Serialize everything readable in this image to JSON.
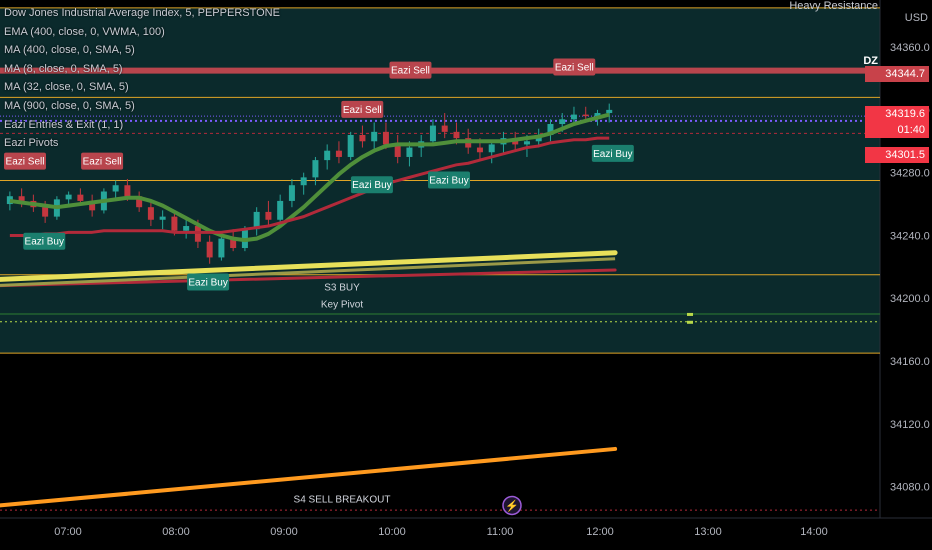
{
  "header": {
    "title": "Dow Jones Industrial Average Index, 5, PEPPERSTONE",
    "indicators": [
      "EMA (400, close, 0, VWMA, 100)",
      "MA (400, close, 0, SMA, 5)",
      "MA (8, close, 0, SMA, 5)",
      "MA (32, close, 0, SMA, 5)",
      "MA (900, close, 0, SMA, 5)",
      "Eazi Entries & Exit (1, 1)",
      "Eazi Pivots"
    ]
  },
  "annotations": {
    "heavy_resistance": "Heavy Resistance",
    "dz": "DZ",
    "s3_buy": "S3 BUY",
    "key_pivot": "Key Pivot",
    "s4_sell_breakout": "S4 SELL BREAKOUT",
    "currency": "USD"
  },
  "price_tags": {
    "red_tag": "34344.7",
    "last_price": "34319.6",
    "countdown": "01:40",
    "ma_tag": "34301.5"
  },
  "colors": {
    "background_teal": "#0b2a2c",
    "up_candle": "#26a69a",
    "down_candle": "#c4373f",
    "green_ma": "#4f8f3a",
    "red_ma": "#b22a3a",
    "yellow_ma": "#e8e05a",
    "orange_line": "#ff9a1f",
    "level_orange": "#e0a526",
    "dotted_blue": "#7c5cff",
    "buy_label": "#1b7f6e",
    "sell_label": "#b8454d"
  },
  "chart_data": {
    "type": "candlestick",
    "ylim": [
      34060,
      34390
    ],
    "y_ticks": [
      34360.0,
      34320.0,
      34280.0,
      34240.0,
      34200.0,
      34160.0,
      34120.0,
      34080.0
    ],
    "x_ticks": [
      "07:00",
      "08:00",
      "09:00",
      "10:00",
      "11:00",
      "12:00",
      "13:00",
      "14:00"
    ],
    "candles": [
      [
        34260,
        34268,
        34256,
        34265
      ],
      [
        34265,
        34270,
        34258,
        34262
      ],
      [
        34262,
        34266,
        34255,
        34258
      ],
      [
        34258,
        34262,
        34248,
        34252
      ],
      [
        34252,
        34265,
        34250,
        34263
      ],
      [
        34263,
        34268,
        34258,
        34266
      ],
      [
        34266,
        34270,
        34260,
        34262
      ],
      [
        34262,
        34266,
        34252,
        34256
      ],
      [
        34256,
        34270,
        34254,
        34268
      ],
      [
        34268,
        34275,
        34264,
        34272
      ],
      [
        34272,
        34276,
        34262,
        34265
      ],
      [
        34265,
        34268,
        34255,
        34258
      ],
      [
        34258,
        34262,
        34246,
        34250
      ],
      [
        34250,
        34256,
        34244,
        34252
      ],
      [
        34252,
        34255,
        34240,
        34243
      ],
      [
        34243,
        34250,
        34238,
        34246
      ],
      [
        34246,
        34250,
        34232,
        34236
      ],
      [
        34236,
        34240,
        34222,
        34226
      ],
      [
        34226,
        34240,
        34224,
        34238
      ],
      [
        34238,
        34244,
        34230,
        34232
      ],
      [
        34232,
        34246,
        34230,
        34244
      ],
      [
        34244,
        34258,
        34240,
        34255
      ],
      [
        34255,
        34262,
        34246,
        34250
      ],
      [
        34250,
        34266,
        34248,
        34262
      ],
      [
        34262,
        34276,
        34258,
        34272
      ],
      [
        34272,
        34280,
        34266,
        34277
      ],
      [
        34277,
        34290,
        34272,
        34288
      ],
      [
        34288,
        34298,
        34282,
        34294
      ],
      [
        34294,
        34300,
        34286,
        34290
      ],
      [
        34290,
        34306,
        34288,
        34304
      ],
      [
        34304,
        34310,
        34296,
        34300
      ],
      [
        34300,
        34312,
        34294,
        34306
      ],
      [
        34306,
        34312,
        34295,
        34298
      ],
      [
        34298,
        34304,
        34286,
        34290
      ],
      [
        34290,
        34300,
        34284,
        34296
      ],
      [
        34296,
        34304,
        34290,
        34300
      ],
      [
        34300,
        34314,
        34298,
        34310
      ],
      [
        34310,
        34318,
        34302,
        34306
      ],
      [
        34306,
        34312,
        34298,
        34302
      ],
      [
        34302,
        34308,
        34292,
        34296
      ],
      [
        34296,
        34302,
        34288,
        34293
      ],
      [
        34293,
        34300,
        34286,
        34298
      ],
      [
        34298,
        34306,
        34292,
        34302
      ],
      [
        34302,
        34306,
        34294,
        34298
      ],
      [
        34298,
        34304,
        34290,
        34300
      ],
      [
        34300,
        34308,
        34296,
        34304
      ],
      [
        34304,
        34314,
        34300,
        34311
      ],
      [
        34311,
        34318,
        34306,
        34314
      ],
      [
        34314,
        34322,
        34310,
        34317
      ],
      [
        34317,
        34322,
        34312,
        34316
      ],
      [
        34316,
        34320,
        34310,
        34318
      ],
      [
        34318,
        34324,
        34312,
        34320
      ]
    ],
    "series": [
      {
        "name": "MA (8, close, 0, SMA, 5)",
        "values": [
          34262,
          34261,
          34260,
          34259,
          34258,
          34259,
          34260,
          34261,
          34262,
          34263,
          34264,
          34264,
          34262,
          34259,
          34255,
          34251,
          34247,
          34243,
          34240,
          34238,
          34237,
          34238,
          34241,
          34246,
          34252,
          34258,
          34265,
          34272,
          34279,
          34285,
          34290,
          34294,
          34297,
          34298,
          34298,
          34298,
          34298,
          34299,
          34300,
          34300,
          34300,
          34300,
          34300,
          34301,
          34302,
          34303,
          34305,
          34308,
          34311,
          34313,
          34315,
          34317
        ]
      },
      {
        "name": "MA (32, close, 0, SMA, 5)",
        "values": [
          34240,
          34240,
          34240,
          34241,
          34241,
          34242,
          34242,
          34242,
          34243,
          34243,
          34243,
          34243,
          34243,
          34243,
          34242,
          34242,
          34242,
          34242,
          34242,
          34243,
          34244,
          34245,
          34246,
          34248,
          34250,
          34252,
          34255,
          34258,
          34261,
          34264,
          34267,
          34270,
          34273,
          34275,
          34277,
          34279,
          34281,
          34283,
          34285,
          34286,
          34288,
          34290,
          34292,
          34294,
          34296,
          34297,
          34299,
          34300,
          34301,
          34301,
          34302,
          34302
        ]
      },
      {
        "name": "MA (400, close, 0, SMA, 5)",
        "values": [
          34208,
          34218
        ]
      },
      {
        "name": "EMA (400, close, 0, VWMA, 100)",
        "values": [
          34212,
          34229
        ]
      },
      {
        "name": "MA (900, close, 0, SMA, 5)",
        "values": [
          34068,
          34104
        ]
      }
    ],
    "levels": [
      34385,
      34345,
      34328,
      34316,
      34305,
      34275,
      34215,
      34190,
      34185,
      34165,
      34065
    ],
    "signals": [
      {
        "label": "Eazi Sell",
        "index": 0,
        "price": 34287
      },
      {
        "label": "Eazi Sell",
        "index": 8,
        "price": 34287
      },
      {
        "label": "Eazi Buy",
        "index": 2,
        "price": 34236
      },
      {
        "label": "Eazi Buy",
        "index": 19,
        "price": 34210
      },
      {
        "label": "Eazi Sell",
        "index": 35,
        "price": 34320
      },
      {
        "label": "Eazi Sell",
        "index": 40,
        "price": 34345
      },
      {
        "label": "Eazi Buy",
        "index": 36,
        "price": 34272
      },
      {
        "label": "Eazi Buy",
        "index": 44,
        "price": 34275
      },
      {
        "label": "Eazi Sell",
        "index": 57,
        "price": 34347
      },
      {
        "label": "Eazi Buy",
        "index": 61,
        "price": 34292
      }
    ]
  }
}
